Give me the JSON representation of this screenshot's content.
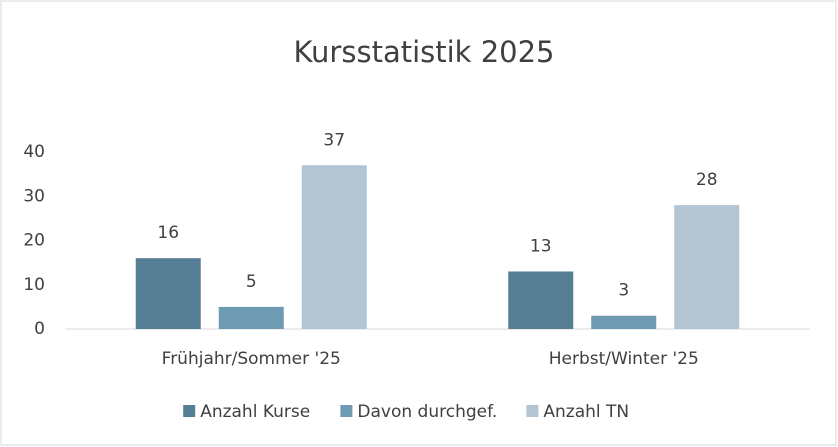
{
  "chart_data": {
    "type": "bar",
    "title": "Kursstatistik 2025",
    "categories": [
      "Frühjahr/Sommer '25",
      "Herbst/Winter '25"
    ],
    "series": [
      {
        "name": "Anzahl Kurse",
        "color": "#557d94",
        "values": [
          16,
          13
        ]
      },
      {
        "name": "Davon durchgef.",
        "color": "#6f9ab4",
        "values": [
          5,
          3
        ]
      },
      {
        "name": "Anzahl TN",
        "color": "#b3c5d2",
        "values": [
          37,
          28
        ]
      }
    ],
    "ylim": [
      0,
      40
    ],
    "yticks": [
      0,
      10,
      20,
      30,
      40
    ],
    "grid": false,
    "legend": "bottom"
  }
}
